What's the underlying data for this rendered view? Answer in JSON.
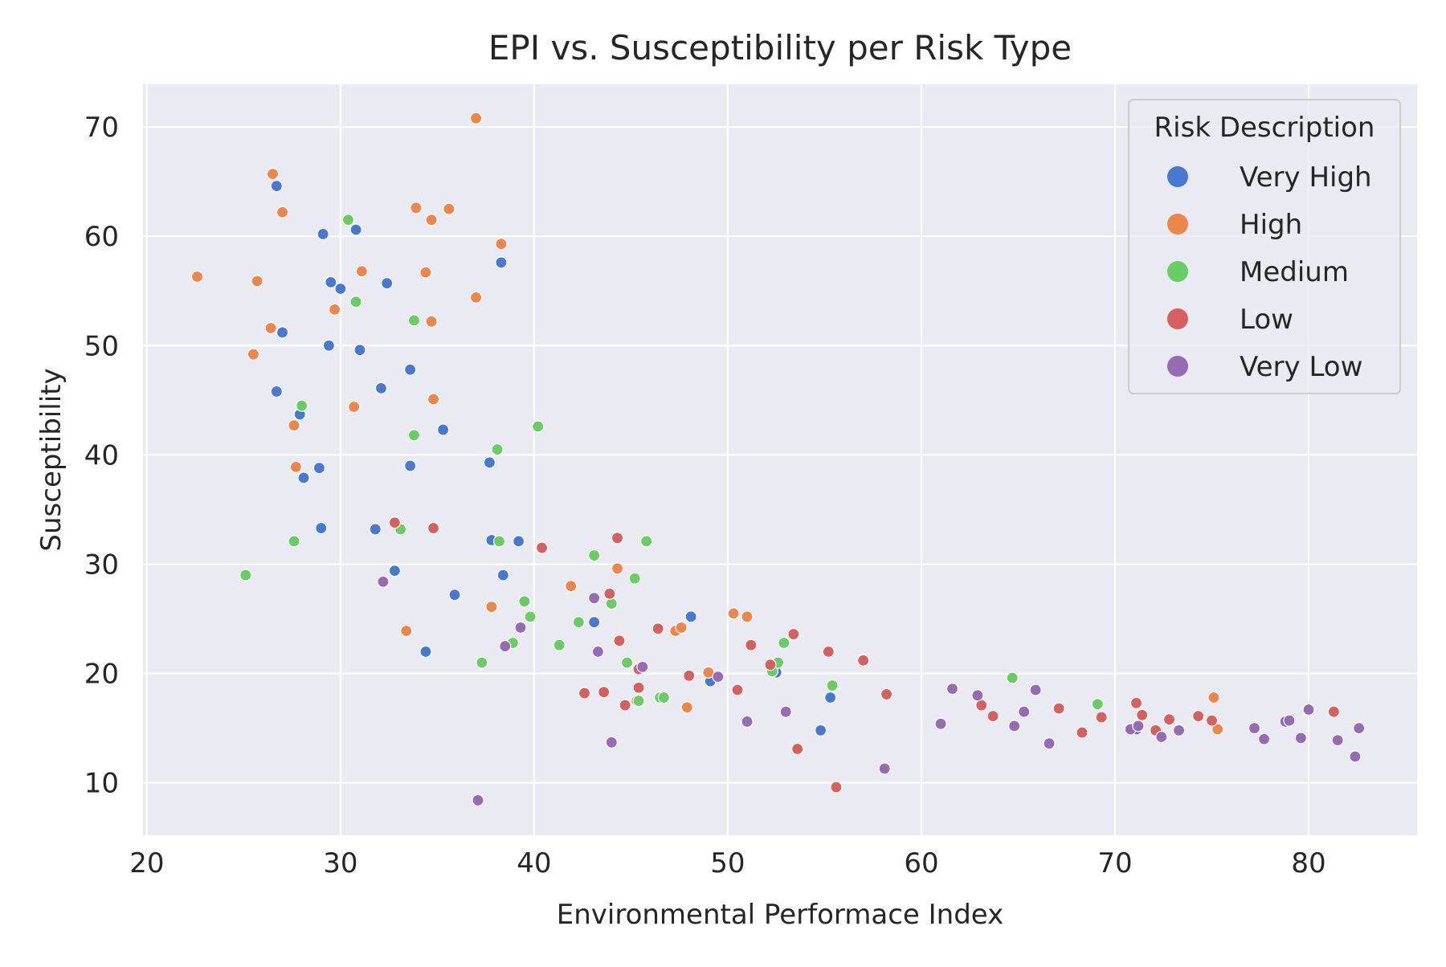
{
  "chart_data": {
    "type": "scatter",
    "title": "EPI vs. Susceptibility per Risk Type",
    "xlabel": "Environmental Performace Index",
    "ylabel": "Susceptibility",
    "xlim": [
      19.8,
      85.6
    ],
    "ylim": [
      5.2,
      73.9
    ],
    "xticks": [
      20,
      30,
      40,
      50,
      60,
      70,
      80
    ],
    "yticks": [
      10,
      20,
      30,
      40,
      50,
      60,
      70
    ],
    "grid": true,
    "legend": {
      "title": "Risk Description",
      "placement": "top-right"
    },
    "colors": {
      "Very High": "#4878d0",
      "High": "#ee854a",
      "Medium": "#6acc64",
      "Low": "#d65f5f",
      "Very Low": "#956cb4",
      "background": "#eaeaf2",
      "grid": "#ffffff"
    },
    "series": [
      {
        "name": "Very High",
        "points": [
          [
            26.7,
            64.6
          ],
          [
            29.1,
            60.2
          ],
          [
            30.8,
            60.6
          ],
          [
            29.5,
            55.8
          ],
          [
            30.0,
            55.2
          ],
          [
            32.4,
            55.7
          ],
          [
            27.0,
            51.2
          ],
          [
            29.4,
            50.0
          ],
          [
            31.0,
            49.6
          ],
          [
            26.7,
            45.8
          ],
          [
            32.1,
            46.1
          ],
          [
            33.6,
            47.8
          ],
          [
            27.9,
            43.7
          ],
          [
            28.9,
            38.8
          ],
          [
            28.1,
            37.9
          ],
          [
            33.6,
            39.0
          ],
          [
            35.3,
            42.3
          ],
          [
            37.7,
            39.3
          ],
          [
            38.3,
            57.6
          ],
          [
            29.0,
            33.3
          ],
          [
            31.8,
            33.2
          ],
          [
            37.8,
            32.2
          ],
          [
            39.2,
            32.1
          ],
          [
            32.8,
            29.4
          ],
          [
            38.4,
            29.0
          ],
          [
            35.9,
            27.2
          ],
          [
            43.1,
            24.7
          ],
          [
            48.1,
            25.2
          ],
          [
            34.4,
            22.0
          ],
          [
            49.1,
            19.3
          ],
          [
            52.5,
            20.1
          ],
          [
            54.8,
            14.8
          ],
          [
            55.3,
            17.8
          ],
          [
            71.1,
            14.9
          ]
        ]
      },
      {
        "name": "High",
        "points": [
          [
            37.0,
            70.8
          ],
          [
            26.5,
            65.7
          ],
          [
            27.0,
            62.2
          ],
          [
            33.9,
            62.6
          ],
          [
            34.7,
            61.5
          ],
          [
            35.6,
            62.5
          ],
          [
            22.6,
            56.3
          ],
          [
            25.7,
            55.9
          ],
          [
            31.1,
            56.8
          ],
          [
            34.4,
            56.7
          ],
          [
            38.3,
            59.3
          ],
          [
            29.7,
            53.3
          ],
          [
            37.0,
            54.4
          ],
          [
            26.4,
            51.6
          ],
          [
            34.7,
            52.2
          ],
          [
            25.5,
            49.2
          ],
          [
            30.7,
            44.4
          ],
          [
            34.8,
            45.1
          ],
          [
            27.6,
            42.7
          ],
          [
            27.7,
            38.9
          ],
          [
            33.4,
            23.9
          ],
          [
            37.8,
            26.1
          ],
          [
            41.9,
            28.0
          ],
          [
            44.3,
            29.6
          ],
          [
            47.3,
            23.9
          ],
          [
            47.6,
            24.2
          ],
          [
            50.3,
            25.5
          ],
          [
            51.0,
            25.2
          ],
          [
            45.3,
            17.5
          ],
          [
            47.9,
            16.9
          ],
          [
            49.0,
            20.1
          ],
          [
            75.1,
            17.8
          ],
          [
            75.3,
            14.9
          ]
        ]
      },
      {
        "name": "Medium",
        "points": [
          [
            30.4,
            61.5
          ],
          [
            30.8,
            54.0
          ],
          [
            33.8,
            52.3
          ],
          [
            28.0,
            44.5
          ],
          [
            33.8,
            41.8
          ],
          [
            38.1,
            40.5
          ],
          [
            40.2,
            42.6
          ],
          [
            27.6,
            32.1
          ],
          [
            33.1,
            33.2
          ],
          [
            38.2,
            32.1
          ],
          [
            45.8,
            32.1
          ],
          [
            25.1,
            29.0
          ],
          [
            43.1,
            30.8
          ],
          [
            45.2,
            28.7
          ],
          [
            39.5,
            26.6
          ],
          [
            39.8,
            25.2
          ],
          [
            44.0,
            26.4
          ],
          [
            42.3,
            24.7
          ],
          [
            41.3,
            22.6
          ],
          [
            38.9,
            22.8
          ],
          [
            37.3,
            21.0
          ],
          [
            44.8,
            21.0
          ],
          [
            45.4,
            17.5
          ],
          [
            46.5,
            17.8
          ],
          [
            46.7,
            17.8
          ],
          [
            52.3,
            20.2
          ],
          [
            52.6,
            21.0
          ],
          [
            52.9,
            22.8
          ],
          [
            55.4,
            18.9
          ],
          [
            64.7,
            19.6
          ],
          [
            69.1,
            17.2
          ]
        ]
      },
      {
        "name": "Low",
        "points": [
          [
            32.8,
            33.8
          ],
          [
            34.8,
            33.3
          ],
          [
            40.4,
            31.5
          ],
          [
            44.3,
            32.4
          ],
          [
            43.9,
            27.3
          ],
          [
            46.4,
            24.1
          ],
          [
            44.4,
            23.0
          ],
          [
            45.4,
            20.4
          ],
          [
            42.6,
            18.2
          ],
          [
            43.6,
            18.3
          ],
          [
            45.4,
            18.7
          ],
          [
            44.7,
            17.1
          ],
          [
            48.0,
            19.8
          ],
          [
            50.5,
            18.5
          ],
          [
            51.2,
            22.6
          ],
          [
            52.2,
            20.8
          ],
          [
            53.4,
            23.6
          ],
          [
            55.2,
            22.0
          ],
          [
            57.0,
            21.2
          ],
          [
            58.2,
            18.1
          ],
          [
            53.6,
            13.1
          ],
          [
            55.6,
            9.6
          ],
          [
            63.1,
            17.1
          ],
          [
            63.7,
            16.1
          ],
          [
            67.1,
            16.8
          ],
          [
            68.3,
            14.6
          ],
          [
            69.3,
            16.0
          ],
          [
            71.1,
            17.3
          ],
          [
            71.4,
            16.2
          ],
          [
            72.1,
            14.8
          ],
          [
            72.8,
            15.8
          ],
          [
            74.3,
            16.1
          ],
          [
            75.0,
            15.7
          ],
          [
            81.3,
            16.5
          ]
        ]
      },
      {
        "name": "Very Low",
        "points": [
          [
            32.2,
            28.4
          ],
          [
            43.1,
            26.9
          ],
          [
            39.3,
            24.2
          ],
          [
            38.5,
            22.5
          ],
          [
            43.3,
            22.0
          ],
          [
            45.6,
            20.6
          ],
          [
            49.5,
            19.7
          ],
          [
            44.0,
            13.7
          ],
          [
            51.0,
            15.6
          ],
          [
            53.0,
            16.5
          ],
          [
            58.1,
            11.3
          ],
          [
            37.1,
            8.4
          ],
          [
            61.0,
            15.4
          ],
          [
            61.6,
            18.6
          ],
          [
            62.9,
            18.0
          ],
          [
            64.8,
            15.2
          ],
          [
            65.3,
            16.5
          ],
          [
            65.9,
            18.5
          ],
          [
            66.6,
            13.6
          ],
          [
            70.8,
            14.9
          ],
          [
            71.2,
            15.2
          ],
          [
            72.4,
            14.2
          ],
          [
            73.3,
            14.8
          ],
          [
            77.2,
            15.0
          ],
          [
            77.7,
            14.0
          ],
          [
            78.8,
            15.6
          ],
          [
            79.0,
            15.7
          ],
          [
            79.6,
            14.1
          ],
          [
            80.0,
            16.7
          ],
          [
            81.5,
            13.9
          ],
          [
            82.4,
            12.4
          ],
          [
            82.6,
            15.0
          ]
        ]
      }
    ]
  }
}
